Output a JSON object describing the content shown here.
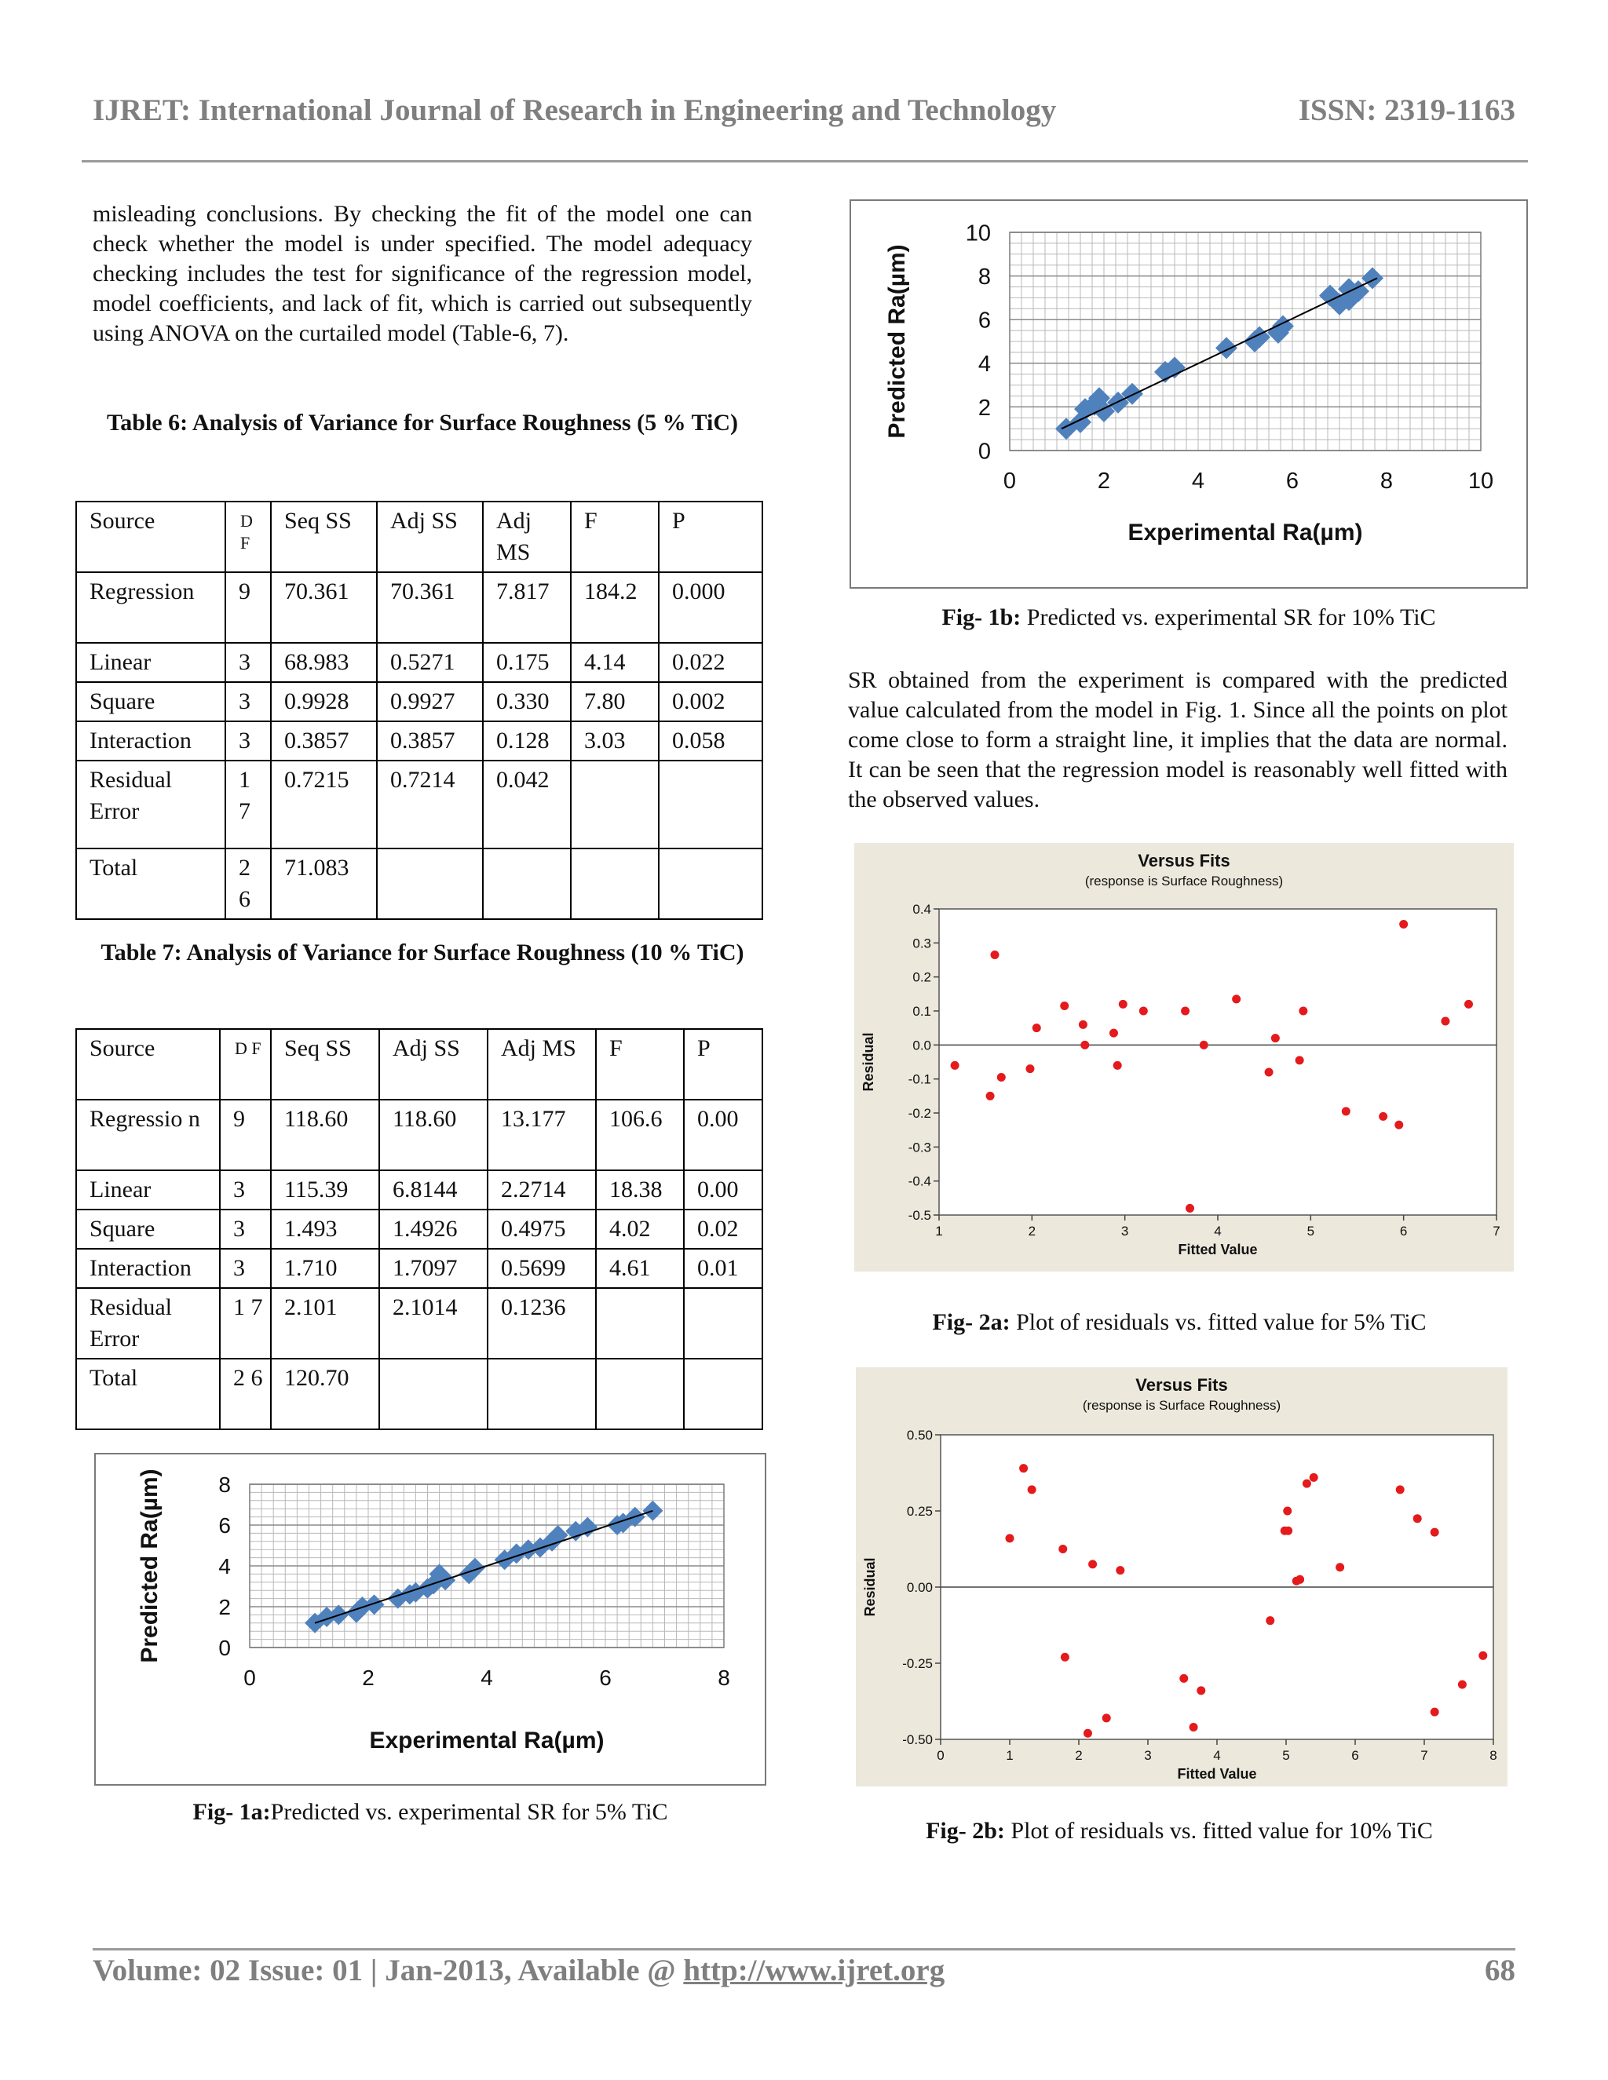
{
  "header": {
    "journal": "IJRET: International Journal of Research in Engineering and Technology",
    "issn": "ISSN: 2319-1163"
  },
  "intro_paragraph": "misleading conclusions. By checking the fit of the model one can check whether the model is under specified. The model adequacy checking includes the test for significance of the regression model, model coefficients, and lack of fit, which is carried out subsequently using ANOVA on the curtailed model (Table-6, 7).",
  "table6": {
    "title": "Table 6: Analysis of Variance for Surface Roughness (5 % TiC)",
    "headers": [
      "Source",
      "D F",
      "Seq SS",
      "Adj SS",
      "Adj MS",
      "F",
      "P"
    ],
    "rows": [
      [
        "Regression",
        "9",
        "70.361",
        "70.361",
        "7.817",
        "184.2",
        "0.000"
      ],
      [
        "Linear",
        "3",
        "68.983",
        "0.5271",
        "0.175",
        "4.14",
        "0.022"
      ],
      [
        "Square",
        "3",
        "0.9928",
        "0.9927",
        "0.330",
        "7.80",
        "0.002"
      ],
      [
        "Interaction",
        "3",
        "0.3857",
        "0.3857",
        "0.128",
        "3.03",
        "0.058"
      ],
      [
        "Residual Error",
        "1 7",
        "0.7215",
        "0.7214",
        "0.042",
        "",
        ""
      ],
      [
        "Total",
        "2 6",
        "71.083",
        "",
        "",
        "",
        ""
      ]
    ]
  },
  "table7": {
    "title": "Table 7: Analysis of Variance for Surface Roughness (10 % TiC)",
    "headers": [
      "Source",
      "D F",
      "Seq SS",
      "Adj SS",
      "Adj MS",
      "F",
      "P"
    ],
    "rows": [
      [
        "Regressio n",
        "9",
        "118.60",
        "118.60",
        "13.177",
        "106.6",
        "0.00"
      ],
      [
        "Linear",
        "3",
        "115.39",
        "6.8144",
        "2.2714",
        "18.38",
        "0.00"
      ],
      [
        "Square",
        "3",
        "1.493",
        "1.4926",
        "0.4975",
        "4.02",
        "0.02"
      ],
      [
        "Interaction",
        "3",
        "1.710",
        "1.7097",
        "0.5699",
        "4.61",
        "0.01"
      ],
      [
        "Residual Error",
        "1 7",
        "2.101",
        "2.1014",
        "0.1236",
        "",
        ""
      ],
      [
        "Total",
        "2 6",
        "120.70",
        "",
        "",
        "",
        ""
      ]
    ]
  },
  "right_paragraph": "SR obtained from the experiment is compared with the predicted value calculated from the model in Fig. 1. Since all the points on plot come close to form a straight line, it implies that the data are normal. It can be seen that the regression model is reasonably well fitted with the observed values.",
  "captions": {
    "fig1a_bold": "Fig- 1a:",
    "fig1a_text": "Predicted vs. experimental SR for 5% TiC",
    "fig1b_bold": "Fig- 1b:",
    "fig1b_text": " Predicted vs. experimental SR for 10% TiC",
    "fig2a_bold": "Fig- 2a:",
    "fig2a_text": " Plot of residuals vs. fitted value for 5% TiC",
    "fig2b_bold": "Fig- 2b:",
    "fig2b_text": " Plot of residuals vs. fitted value for 10% TiC"
  },
  "colors": {
    "marker": "#4f81bd",
    "resid": "#e41a1c",
    "panel": "#ece8dc",
    "rule": "#9a9a9a"
  },
  "footer": {
    "volume": "Volume: 02 Issue: 01 | Jan-2013, Available @ ",
    "url": "http://www.ijret.org",
    "page": "68"
  },
  "chart_data": [
    {
      "id": "fig1a",
      "type": "scatter",
      "xlabel": "Experimental Ra(µm)",
      "ylabel": "Predicted Ra(µm)",
      "xlim": [
        0,
        8
      ],
      "ylim": [
        0,
        8
      ],
      "xticks": [
        "0",
        "2",
        "4",
        "6",
        "8"
      ],
      "yticks": [
        "0",
        "2",
        "4",
        "6",
        "8"
      ],
      "grid": true,
      "trendline": [
        [
          1.1,
          1.2
        ],
        [
          6.8,
          6.7
        ]
      ],
      "points": [
        [
          1.1,
          1.2
        ],
        [
          1.3,
          1.5
        ],
        [
          1.5,
          1.6
        ],
        [
          1.8,
          1.7
        ],
        [
          1.9,
          2.0
        ],
        [
          2.1,
          2.1
        ],
        [
          2.5,
          2.4
        ],
        [
          2.7,
          2.6
        ],
        [
          2.8,
          2.7
        ],
        [
          3.0,
          2.9
        ],
        [
          3.1,
          3.1
        ],
        [
          3.3,
          3.3
        ],
        [
          3.2,
          3.6
        ],
        [
          3.7,
          3.6
        ],
        [
          3.8,
          3.9
        ],
        [
          4.3,
          4.3
        ],
        [
          4.5,
          4.6
        ],
        [
          4.7,
          4.8
        ],
        [
          4.9,
          4.9
        ],
        [
          5.1,
          5.2
        ],
        [
          5.2,
          5.5
        ],
        [
          5.5,
          5.7
        ],
        [
          5.7,
          5.9
        ],
        [
          6.2,
          6.0
        ],
        [
          6.3,
          6.1
        ],
        [
          6.5,
          6.4
        ],
        [
          6.8,
          6.7
        ]
      ]
    },
    {
      "id": "fig1b",
      "type": "scatter",
      "xlabel": "Experimental Ra(µm)",
      "ylabel": "Predicted Ra(µm)",
      "xlim": [
        0,
        10
      ],
      "ylim": [
        0,
        10
      ],
      "xticks": [
        "0",
        "2",
        "4",
        "6",
        "8",
        "10"
      ],
      "yticks": [
        "0",
        "2",
        "4",
        "6",
        "8",
        "10"
      ],
      "grid": true,
      "trendline": [
        [
          1.1,
          1.0
        ],
        [
          7.8,
          7.9
        ]
      ],
      "points": [
        [
          1.2,
          1.0
        ],
        [
          1.5,
          1.3
        ],
        [
          1.6,
          1.9
        ],
        [
          1.8,
          2.1
        ],
        [
          1.9,
          2.4
        ],
        [
          2.0,
          1.8
        ],
        [
          2.3,
          2.2
        ],
        [
          2.6,
          2.6
        ],
        [
          3.3,
          3.6
        ],
        [
          3.5,
          3.8
        ],
        [
          4.6,
          4.7
        ],
        [
          5.2,
          5.0
        ],
        [
          5.3,
          5.2
        ],
        [
          5.7,
          5.4
        ],
        [
          5.8,
          5.7
        ],
        [
          6.8,
          7.1
        ],
        [
          7.0,
          6.7
        ],
        [
          7.2,
          6.9
        ],
        [
          7.2,
          7.4
        ],
        [
          7.4,
          7.3
        ],
        [
          7.7,
          7.9
        ]
      ]
    },
    {
      "id": "fig2a",
      "type": "scatter",
      "title": "Versus Fits",
      "subtitle": "(response is Surface Roughness)",
      "xlabel": "Fitted Value",
      "ylabel": "Residual",
      "xlim": [
        1,
        7
      ],
      "ylim": [
        -0.5,
        0.4
      ],
      "xticks": [
        "1",
        "2",
        "3",
        "4",
        "5",
        "6",
        "7"
      ],
      "yticks": [
        "-0.5",
        "-0.4",
        "-0.3",
        "-0.2",
        "-0.1",
        "0.0",
        "0.1",
        "0.2",
        "0.3",
        "0.4"
      ],
      "reference_line": 0,
      "points": [
        [
          1.17,
          -0.06
        ],
        [
          1.55,
          -0.15
        ],
        [
          1.6,
          0.265
        ],
        [
          1.67,
          -0.095
        ],
        [
          1.98,
          -0.07
        ],
        [
          2.05,
          0.05
        ],
        [
          2.35,
          0.115
        ],
        [
          2.55,
          0.06
        ],
        [
          2.57,
          0.0
        ],
        [
          2.88,
          0.035
        ],
        [
          2.92,
          -0.06
        ],
        [
          2.98,
          0.12
        ],
        [
          3.2,
          0.1
        ],
        [
          3.65,
          0.1
        ],
        [
          3.7,
          -0.48
        ],
        [
          3.85,
          0.0
        ],
        [
          4.2,
          0.135
        ],
        [
          4.55,
          -0.08
        ],
        [
          4.62,
          0.02
        ],
        [
          4.88,
          -0.045
        ],
        [
          4.92,
          0.1
        ],
        [
          5.38,
          -0.195
        ],
        [
          5.78,
          -0.21
        ],
        [
          5.95,
          -0.235
        ],
        [
          6.0,
          0.355
        ],
        [
          6.45,
          0.07
        ],
        [
          6.7,
          0.12
        ]
      ]
    },
    {
      "id": "fig2b",
      "type": "scatter",
      "title": "Versus Fits",
      "subtitle": "(response is Surface Roughness)",
      "xlabel": "Fitted Value",
      "ylabel": "Residual",
      "xlim": [
        0,
        8
      ],
      "ylim": [
        -0.5,
        0.5
      ],
      "xticks": [
        "0",
        "1",
        "2",
        "3",
        "4",
        "5",
        "6",
        "7",
        "8"
      ],
      "yticks": [
        "-0.50",
        "-0.25",
        "0.00",
        "0.25",
        "0.50"
      ],
      "reference_line": 0,
      "points": [
        [
          1.0,
          0.16
        ],
        [
          1.2,
          0.39
        ],
        [
          1.32,
          0.32
        ],
        [
          1.77,
          0.125
        ],
        [
          1.8,
          -0.23
        ],
        [
          2.13,
          -0.48
        ],
        [
          2.2,
          0.075
        ],
        [
          2.4,
          -0.43
        ],
        [
          2.6,
          0.055
        ],
        [
          3.52,
          -0.3
        ],
        [
          3.66,
          -0.46
        ],
        [
          3.77,
          -0.34
        ],
        [
          4.77,
          -0.11
        ],
        [
          4.98,
          0.185
        ],
        [
          5.02,
          0.25
        ],
        [
          5.03,
          0.185
        ],
        [
          5.15,
          0.02
        ],
        [
          5.2,
          0.025
        ],
        [
          5.3,
          0.34
        ],
        [
          5.4,
          0.36
        ],
        [
          5.78,
          0.065
        ],
        [
          6.65,
          0.32
        ],
        [
          6.9,
          0.225
        ],
        [
          7.15,
          0.18
        ],
        [
          7.15,
          -0.41
        ],
        [
          7.55,
          -0.32
        ],
        [
          7.85,
          -0.225
        ]
      ]
    }
  ]
}
